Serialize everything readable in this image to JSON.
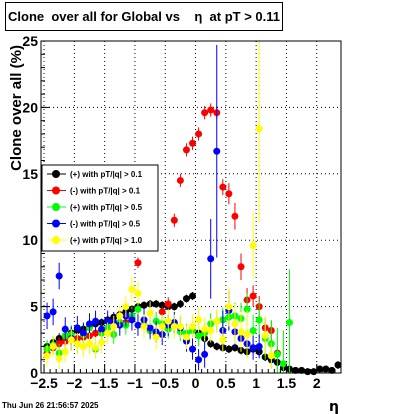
{
  "title": "Clone  over all for Global vs    η  at pT > 0.11",
  "timestamp": "Thu Jun 26 21:56:57 2025",
  "chart_data": {
    "type": "scatter",
    "title": "Clone  over all for Global vs    η  at pT > 0.11",
    "xlabel": "η",
    "ylabel": "Clone  over all (%)",
    "xlim": [
      -2.55,
      2.4
    ],
    "ylim": [
      0,
      25
    ],
    "xticks": [
      -2.5,
      -2,
      -1.5,
      -1,
      -0.5,
      0,
      0.5,
      1,
      1.5,
      2
    ],
    "xtick_labels": [
      "−2.5",
      "−2",
      "−1.5",
      "−1",
      "−0.5",
      "0",
      "0.5",
      "1",
      "1.5",
      "2"
    ],
    "yticks": [
      0,
      5,
      10,
      15,
      20,
      25
    ],
    "ytick_labels": [
      "0",
      "5",
      "10",
      "15",
      "20",
      "25"
    ],
    "grid": true,
    "legend_position": "left-middle",
    "series": [
      {
        "name": "(+) with pT/|q| > 0.1",
        "color": "#000000",
        "x": [
          -2.45,
          -2.35,
          -2.25,
          -2.15,
          -2.05,
          -1.95,
          -1.85,
          -1.75,
          -1.65,
          -1.55,
          -1.45,
          -1.35,
          -1.25,
          -1.15,
          -1.05,
          -0.95,
          -0.85,
          -0.75,
          -0.65,
          -0.55,
          -0.45,
          -0.35,
          -0.25,
          -0.15,
          -0.05,
          0.05,
          0.15,
          0.25,
          0.35,
          0.45,
          0.55,
          0.65,
          0.75,
          0.85,
          0.95,
          1.05,
          1.15,
          1.25,
          1.35,
          1.45,
          1.55,
          1.65,
          1.75,
          1.85,
          1.95,
          2.05,
          2.15,
          2.25,
          2.35
        ],
        "y": [
          2.0,
          2.3,
          2.6,
          2.8,
          3.0,
          3.2,
          3.3,
          3.5,
          3.7,
          3.8,
          4.0,
          4.2,
          4.4,
          4.6,
          4.8,
          5.0,
          5.1,
          5.2,
          5.2,
          5.1,
          5.0,
          5.0,
          5.2,
          5.6,
          5.8,
          3.0,
          2.6,
          2.2,
          2.0,
          1.9,
          1.8,
          1.9,
          1.7,
          1.6,
          1.8,
          1.6,
          1.2,
          1.0,
          0.8,
          0.4,
          0.3,
          0.2,
          0.2,
          0.1,
          0.1,
          0.3,
          0.3,
          0.2,
          0.6
        ],
        "err": [
          0.4,
          0.4,
          0.4,
          0.4,
          0.4,
          0.4,
          0.4,
          0.3,
          0.3,
          0.3,
          0.3,
          0.3,
          0.3,
          0.3,
          0.3,
          0.3,
          0.3,
          0.3,
          0.3,
          0.3,
          0.3,
          0.3,
          0.3,
          0.3,
          0.3,
          0.3,
          0.3,
          0.3,
          0.3,
          0.3,
          0.3,
          0.3,
          0.3,
          0.3,
          0.3,
          0.3,
          0.3,
          0.3,
          0.2,
          0.2,
          0.2,
          0.2,
          0.2,
          0.2,
          0.2,
          0.2,
          0.2,
          0.2,
          0.3
        ]
      },
      {
        "name": "(-) with pT/|q| > 0.1",
        "color": "#ff0000",
        "x": [
          -2.45,
          -2.35,
          -2.25,
          -2.15,
          -2.05,
          -1.95,
          -1.85,
          -1.75,
          -1.65,
          -1.55,
          -1.45,
          -1.35,
          -1.25,
          -1.15,
          -1.05,
          -0.95,
          -0.85,
          -0.75,
          -0.65,
          -0.55,
          -0.45,
          -0.35,
          -0.25,
          -0.15,
          -0.05,
          0.05,
          0.15,
          0.25,
          0.35,
          0.45,
          0.55,
          0.65,
          0.75,
          0.85,
          0.95,
          1.05,
          1.15,
          1.25,
          1.35
        ],
        "y": [
          1.5,
          1.9,
          2.2,
          2.4,
          2.6,
          2.6,
          2.7,
          2.8,
          3.0,
          3.2,
          3.4,
          3.6,
          3.8,
          3.8,
          4.1,
          8.3,
          3.6,
          3.2,
          2.9,
          4.6,
          5.2,
          11.5,
          14.5,
          16.8,
          17.3,
          18.0,
          19.6,
          19.8,
          19.6,
          14.0,
          13.5,
          11.8,
          8.0,
          5.5,
          5.8,
          5.0,
          3.4,
          3.2,
          1.5
        ],
        "err": [
          0.5,
          0.5,
          0.5,
          0.5,
          0.5,
          0.5,
          0.4,
          0.4,
          0.4,
          0.4,
          0.4,
          0.4,
          0.4,
          0.4,
          0.4,
          0.4,
          0.4,
          0.4,
          0.4,
          0.4,
          0.5,
          0.5,
          0.5,
          0.5,
          0.5,
          0.5,
          0.5,
          0.5,
          0.5,
          0.6,
          0.8,
          1.0,
          1.0,
          0.9,
          0.8,
          0.8,
          0.7,
          0.7,
          0.5
        ]
      },
      {
        "name": "(+) with pT/|q| > 0.5",
        "color": "#00ff00",
        "x": [
          -2.45,
          -2.35,
          -2.25,
          -2.15,
          -2.05,
          -1.95,
          -1.85,
          -1.75,
          -1.65,
          -1.55,
          -1.45,
          -1.35,
          -1.25,
          -1.15,
          -1.05,
          -0.95,
          -0.85,
          -0.75,
          -0.65,
          -0.55,
          -0.45,
          -0.35,
          -0.25,
          -0.15,
          -0.05,
          0.05,
          0.15,
          0.25,
          0.35,
          0.45,
          0.55,
          0.65,
          0.75,
          0.85,
          0.95,
          1.05,
          1.15,
          1.25,
          1.35,
          1.45,
          1.55
        ],
        "y": [
          1.8,
          2.1,
          1.5,
          2.8,
          2.9,
          2.2,
          2.9,
          3.4,
          1.8,
          3.0,
          3.4,
          2.9,
          3.8,
          3.6,
          4.3,
          4.8,
          3.6,
          3.2,
          3.9,
          3.7,
          3.3,
          3.6,
          3.1,
          3.0,
          3.2,
          2.8,
          3.0,
          3.7,
          3.9,
          4.0,
          4.2,
          4.3,
          4.1,
          4.8,
          3.2,
          4.0,
          2.6,
          2.2,
          1.4,
          0.7,
          3.8
        ],
        "err": [
          0.7,
          0.7,
          0.7,
          0.7,
          0.7,
          0.7,
          0.7,
          0.7,
          0.7,
          0.7,
          0.7,
          0.7,
          0.7,
          0.7,
          0.7,
          0.7,
          0.7,
          0.7,
          0.7,
          0.7,
          0.7,
          0.7,
          0.7,
          0.7,
          0.7,
          0.8,
          0.8,
          0.8,
          0.8,
          0.9,
          1.0,
          1.0,
          1.2,
          1.2,
          1.2,
          1.4,
          1.6,
          1.8,
          2.0,
          2.5,
          4.0
        ]
      },
      {
        "name": "(-) with pT/|q| > 0.5",
        "color": "#0000ff",
        "x": [
          -2.45,
          -2.35,
          -2.25,
          -2.15,
          -2.05,
          -1.95,
          -1.85,
          -1.75,
          -1.65,
          -1.55,
          -1.45,
          -1.35,
          -1.25,
          -1.15,
          -1.05,
          -0.95,
          -0.85,
          -0.75,
          -0.65,
          -0.55,
          -0.45,
          -0.35,
          -0.25,
          -0.15,
          -0.05,
          0.05,
          0.15,
          0.25,
          0.35,
          0.45,
          0.55,
          0.65,
          0.75,
          0.85,
          0.95,
          1.05
        ],
        "y": [
          4.3,
          4.6,
          7.3,
          3.3,
          2.6,
          3.4,
          3.0,
          3.7,
          3.9,
          3.3,
          3.9,
          3.8,
          3.6,
          4.3,
          4.0,
          3.6,
          4.0,
          3.4,
          3.1,
          2.9,
          3.6,
          3.8,
          3.4,
          2.4,
          1.8,
          1.0,
          1.4,
          8.6,
          16.7,
          3.2,
          4.7,
          3.1,
          2.6,
          2.2,
          1.9,
          2.0
        ],
        "err": [
          1.0,
          1.0,
          1.0,
          0.9,
          0.9,
          0.9,
          0.8,
          0.8,
          0.8,
          0.8,
          0.8,
          0.8,
          0.8,
          0.8,
          0.8,
          0.8,
          0.8,
          0.8,
          0.8,
          0.8,
          0.8,
          0.8,
          0.8,
          0.8,
          0.8,
          0.8,
          1.0,
          3.0,
          8.0,
          1.5,
          1.5,
          1.2,
          1.0,
          1.0,
          0.9,
          0.9
        ]
      },
      {
        "name": "(+) with pT/|q| > 1.0",
        "color": "#ffff00",
        "x": [
          -2.45,
          -2.35,
          -2.25,
          -2.15,
          -2.05,
          -1.95,
          -1.85,
          -1.75,
          -1.65,
          -1.55,
          -1.45,
          -1.35,
          -1.25,
          -1.15,
          -1.05,
          -0.95,
          -0.85,
          -0.75,
          -0.65,
          -0.55,
          -0.45,
          -0.35,
          -0.25,
          -0.15,
          -0.05,
          0.05,
          0.15,
          0.25,
          0.35,
          0.45,
          0.55,
          0.65,
          0.75,
          0.85,
          0.95,
          1.05,
          1.15,
          1.25
        ],
        "y": [
          1.3,
          2.0,
          1.1,
          1.6,
          2.5,
          2.2,
          2.0,
          2.2,
          1.9,
          2.3,
          3.0,
          3.5,
          4.3,
          5.0,
          6.3,
          6.0,
          3.5,
          4.5,
          2.7,
          3.5,
          3.9,
          3.5,
          3.5,
          2.7,
          3.5,
          4.0,
          3.3,
          3.2,
          3.9,
          2.5,
          5.0,
          3.7,
          3.1,
          2.9,
          9.6,
          18.4,
          2.8,
          1.3
        ],
        "err": [
          0.8,
          0.8,
          0.8,
          0.8,
          0.8,
          0.8,
          0.8,
          0.8,
          0.8,
          0.8,
          0.8,
          0.8,
          0.8,
          0.8,
          0.9,
          0.9,
          0.9,
          0.9,
          0.9,
          0.9,
          0.9,
          0.9,
          0.9,
          0.9,
          0.9,
          0.9,
          0.9,
          0.9,
          0.9,
          0.9,
          1.5,
          1.5,
          1.5,
          1.8,
          2.5,
          7.0,
          1.5,
          1.0
        ]
      }
    ]
  }
}
